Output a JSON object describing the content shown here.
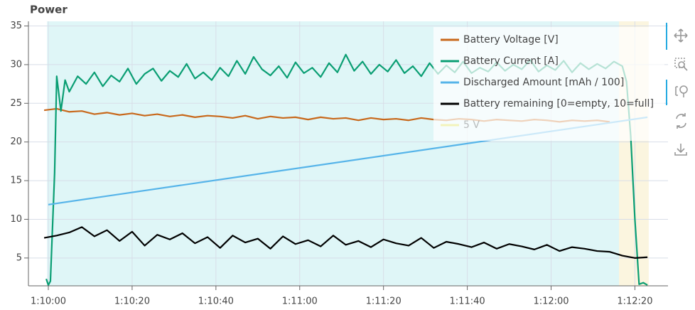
{
  "chart_data": {
    "type": "line",
    "title": "Power",
    "xlim": [
      4195.25,
      4347.9
    ],
    "ylim": [
      1.4,
      35.6
    ],
    "xticks": [
      {
        "value": 4200,
        "label": "1:10:00"
      },
      {
        "value": 4220,
        "label": "1:10:20"
      },
      {
        "value": 4240,
        "label": "1:10:40"
      },
      {
        "value": 4260,
        "label": "1:11:00"
      },
      {
        "value": 4280,
        "label": "1:11:20"
      },
      {
        "value": 4300,
        "label": "1:11:40"
      },
      {
        "value": 4320,
        "label": "1:12:00"
      },
      {
        "value": 4340,
        "label": "1:12:20"
      }
    ],
    "yticks": [
      5,
      10,
      15,
      20,
      25,
      30,
      35
    ],
    "grid": true,
    "legend": "top_right",
    "bands": [
      {
        "x": [
          4199.7,
          4336.2
        ],
        "color": "#dff6f7"
      },
      {
        "x": [
          4336.2,
          4343.3
        ],
        "color": "#fbf5df"
      }
    ],
    "series": [
      {
        "name": "Battery Voltage [V]",
        "color": "#c8681b",
        "x": [
          4199,
          4202,
          4205,
          4208,
          4211,
          4214,
          4217,
          4220,
          4223,
          4226,
          4229,
          4232,
          4235,
          4238,
          4241,
          4244,
          4247,
          4250,
          4253,
          4256,
          4259,
          4262,
          4265,
          4268,
          4271,
          4274,
          4277,
          4280,
          4283,
          4286,
          4289,
          4292,
          4295,
          4298,
          4301,
          4304,
          4307,
          4310,
          4313,
          4316,
          4319,
          4322,
          4325,
          4328,
          4331,
          4334
        ],
        "values": [
          24.1,
          24.3,
          23.9,
          24.0,
          23.6,
          23.8,
          23.5,
          23.7,
          23.4,
          23.6,
          23.3,
          23.5,
          23.2,
          23.4,
          23.3,
          23.1,
          23.4,
          23.0,
          23.3,
          23.1,
          23.2,
          22.9,
          23.2,
          23.0,
          23.1,
          22.8,
          23.1,
          22.9,
          23.0,
          22.8,
          23.1,
          22.9,
          22.8,
          23.0,
          22.9,
          22.7,
          22.9,
          22.8,
          22.7,
          22.9,
          22.8,
          22.6,
          22.8,
          22.7,
          22.8,
          22.6
        ]
      },
      {
        "name": "Battery Current [A]",
        "color": "#0a9e73",
        "x": [
          4199.5,
          4200,
          4200.5,
          4201.5,
          4202,
          4203,
          4204,
          4205,
          4207,
          4209,
          4211,
          4213,
          4215,
          4217,
          4219,
          4221,
          4223,
          4225,
          4227,
          4229,
          4231,
          4233,
          4235,
          4237,
          4239,
          4241,
          4243,
          4245,
          4247,
          4249,
          4251,
          4253,
          4255,
          4257,
          4259,
          4261,
          4263,
          4265,
          4267,
          4269,
          4271,
          4273,
          4275,
          4277,
          4279,
          4281,
          4283,
          4285,
          4287,
          4289,
          4291,
          4293,
          4295,
          4297,
          4299,
          4301,
          4303,
          4305,
          4307,
          4309,
          4311,
          4313,
          4315,
          4317,
          4319,
          4321,
          4323,
          4325,
          4327,
          4329,
          4331,
          4333,
          4335,
          4337,
          4338,
          4339,
          4340,
          4341,
          4342,
          4343
        ],
        "values": [
          2.3,
          1.5,
          2.0,
          16,
          28.5,
          24,
          28,
          26.5,
          28.5,
          27.5,
          29,
          27.2,
          28.6,
          27.8,
          29.5,
          27.5,
          28.8,
          29.5,
          27.9,
          29.2,
          28.4,
          30.1,
          28.2,
          29.0,
          28.0,
          29.6,
          28.5,
          30.5,
          28.8,
          31.0,
          29.4,
          28.6,
          29.8,
          28.3,
          30.3,
          28.9,
          29.6,
          28.4,
          30.2,
          29.0,
          31.3,
          29.2,
          30.4,
          28.8,
          30.0,
          29.1,
          30.6,
          28.9,
          29.8,
          28.5,
          30.2,
          28.8,
          29.9,
          29.0,
          30.4,
          28.9,
          29.6,
          29.1,
          30.3,
          29.2,
          30.0,
          29.4,
          30.6,
          29.1,
          29.9,
          29.3,
          30.5,
          29.0,
          30.2,
          29.4,
          30.1,
          29.5,
          30.4,
          29.8,
          27.8,
          20.8,
          10,
          1.6,
          1.8,
          1.5
        ]
      },
      {
        "name": "Discharged Amount [mAh / 100]",
        "color": "#56b4e9",
        "x": [
          4200,
          4343
        ],
        "values": [
          11.9,
          23.2
        ]
      },
      {
        "name": "Battery remaining [0=empty, 10=full]",
        "color": "#000000",
        "x": [
          4199,
          4202,
          4205,
          4208,
          4211,
          4214,
          4217,
          4220,
          4223,
          4226,
          4229,
          4232,
          4235,
          4238,
          4241,
          4244,
          4247,
          4250,
          4253,
          4256,
          4259,
          4262,
          4265,
          4268,
          4271,
          4274,
          4277,
          4280,
          4283,
          4286,
          4289,
          4292,
          4295,
          4298,
          4301,
          4304,
          4307,
          4310,
          4313,
          4316,
          4319,
          4322,
          4325,
          4328,
          4331,
          4334,
          4337,
          4340,
          4343
        ],
        "values": [
          7.6,
          7.9,
          8.3,
          9.0,
          7.8,
          8.6,
          7.2,
          8.4,
          6.6,
          8.0,
          7.4,
          8.2,
          6.9,
          7.7,
          6.3,
          7.9,
          7.0,
          7.5,
          6.2,
          7.8,
          6.8,
          7.3,
          6.5,
          7.9,
          6.7,
          7.2,
          6.4,
          7.4,
          6.9,
          6.6,
          7.6,
          6.3,
          7.1,
          6.8,
          6.4,
          7.0,
          6.2,
          6.8,
          6.5,
          6.1,
          6.7,
          5.9,
          6.4,
          6.2,
          5.9,
          5.8,
          5.3,
          5.0,
          5.1
        ]
      },
      {
        "name": "5 V",
        "color": "#f0e442",
        "muted": true,
        "x": [],
        "values": []
      }
    ]
  }
}
